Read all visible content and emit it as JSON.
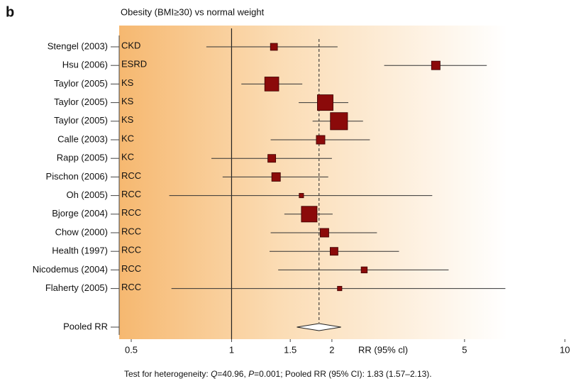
{
  "chart_data": {
    "type": "forest",
    "panel_label": "b",
    "title": "Obesity (BMI≥30) vs normal weight",
    "categories": [
      "Stengel (2003)",
      "Hsu (2006)",
      "Taylor (2005)",
      "Taylor (2005)",
      "Taylor (2005)",
      "Calle (2003)",
      "Rapp (2005)",
      "Pischon (2006)",
      "Oh (2005)",
      "Bjorge (2004)",
      "Chow (2000)",
      "Health (1997)",
      "Nicodemus (2004)",
      "Flaherty (2005)"
    ],
    "groups": [
      "CKD",
      "ESRD",
      "KS",
      "KS",
      "KS",
      "KC",
      "KC",
      "RCC",
      "RCC",
      "RCC",
      "RCC",
      "RCC",
      "RCC",
      "RCC"
    ],
    "values": [
      1.34,
      4.1,
      1.32,
      1.91,
      2.1,
      1.85,
      1.32,
      1.36,
      1.62,
      1.71,
      1.9,
      2.03,
      2.5,
      2.11
    ],
    "lower": [
      0.84,
      2.87,
      1.07,
      1.59,
      1.75,
      1.31,
      0.87,
      0.94,
      0.65,
      1.44,
      1.31,
      1.3,
      1.38,
      0.66
    ],
    "upper": [
      2.08,
      5.83,
      1.63,
      2.24,
      2.48,
      2.6,
      2.0,
      1.95,
      4.0,
      2.01,
      2.73,
      3.18,
      4.48,
      6.63
    ],
    "weights": [
      2,
      3,
      8,
      10,
      12,
      3,
      2.5,
      3,
      0.8,
      10,
      3,
      2.5,
      1.5,
      0.8
    ],
    "color": "#8b0a0a",
    "pooled": {
      "label": "Pooled RR",
      "value": 1.83,
      "lower": 1.57,
      "upper": 2.13
    },
    "x_label": "RR (95% cl)",
    "log_x": true,
    "xlim": [
      0.46,
      10.8
    ],
    "xticks": [
      0.5,
      1,
      1.5,
      2,
      5,
      10
    ],
    "footnote": [
      "Test for heterogeneity: ",
      "Q",
      "=40.96, ",
      "P",
      "=0.001; Pooled RR (95% CI): 1.83 (1.57–2.13)."
    ]
  }
}
